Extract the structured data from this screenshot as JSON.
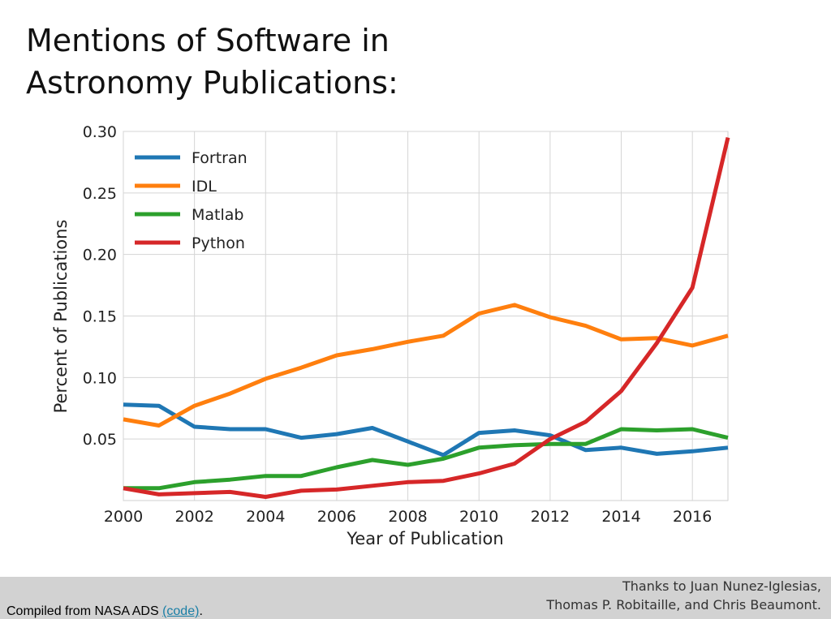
{
  "slide": {
    "title_line1": "Mentions of Software in",
    "title_line2": "Astronomy Publications:"
  },
  "footer": {
    "source_prefix": "Compiled from NASA ADS",
    "code_link_label": "(code)",
    "source_suffix": ".",
    "credit_line1": "Thanks to Juan Nunez-Iglesias,",
    "credit_line2": "Thomas P. Robitaille, and Chris Beaumont."
  },
  "chart_data": {
    "type": "line",
    "title": "",
    "xlabel": "Year of Publication",
    "ylabel": "Percent of Publications",
    "xlim": [
      2000,
      2017
    ],
    "ylim": [
      0.0,
      0.3
    ],
    "x_ticks": [
      "2000",
      "2002",
      "2004",
      "2006",
      "2008",
      "2010",
      "2012",
      "2014",
      "2016"
    ],
    "x_tick_values": [
      2000,
      2002,
      2004,
      2006,
      2008,
      2010,
      2012,
      2014,
      2016
    ],
    "y_ticks": [
      "0.05",
      "0.10",
      "0.15",
      "0.20",
      "0.25",
      "0.30"
    ],
    "y_tick_values": [
      0.05,
      0.1,
      0.15,
      0.2,
      0.25,
      0.3
    ],
    "grid": true,
    "legend_position": "top-left",
    "x": [
      2000,
      2001,
      2002,
      2003,
      2004,
      2005,
      2006,
      2007,
      2008,
      2009,
      2010,
      2011,
      2012,
      2013,
      2014,
      2015,
      2016,
      2017
    ],
    "series": [
      {
        "name": "Fortran",
        "color": "#1f77b4",
        "values": [
          0.078,
          0.077,
          0.06,
          0.058,
          0.058,
          0.051,
          0.054,
          0.059,
          0.048,
          0.037,
          0.055,
          0.057,
          0.053,
          0.041,
          0.043,
          0.038,
          0.04,
          0.043
        ]
      },
      {
        "name": "IDL",
        "color": "#ff7f0e",
        "values": [
          0.066,
          0.061,
          0.077,
          0.087,
          0.099,
          0.108,
          0.118,
          0.123,
          0.129,
          0.134,
          0.152,
          0.159,
          0.149,
          0.142,
          0.131,
          0.132,
          0.126,
          0.134
        ]
      },
      {
        "name": "Matlab",
        "color": "#2ca02c",
        "values": [
          0.01,
          0.01,
          0.015,
          0.017,
          0.02,
          0.02,
          0.027,
          0.033,
          0.029,
          0.034,
          0.043,
          0.045,
          0.046,
          0.046,
          0.058,
          0.057,
          0.058,
          0.051
        ]
      },
      {
        "name": "Python",
        "color": "#d62728",
        "values": [
          0.01,
          0.005,
          0.006,
          0.007,
          0.003,
          0.008,
          0.009,
          0.012,
          0.015,
          0.016,
          0.022,
          0.03,
          0.05,
          0.064,
          0.089,
          0.128,
          0.173,
          0.295
        ]
      }
    ]
  }
}
